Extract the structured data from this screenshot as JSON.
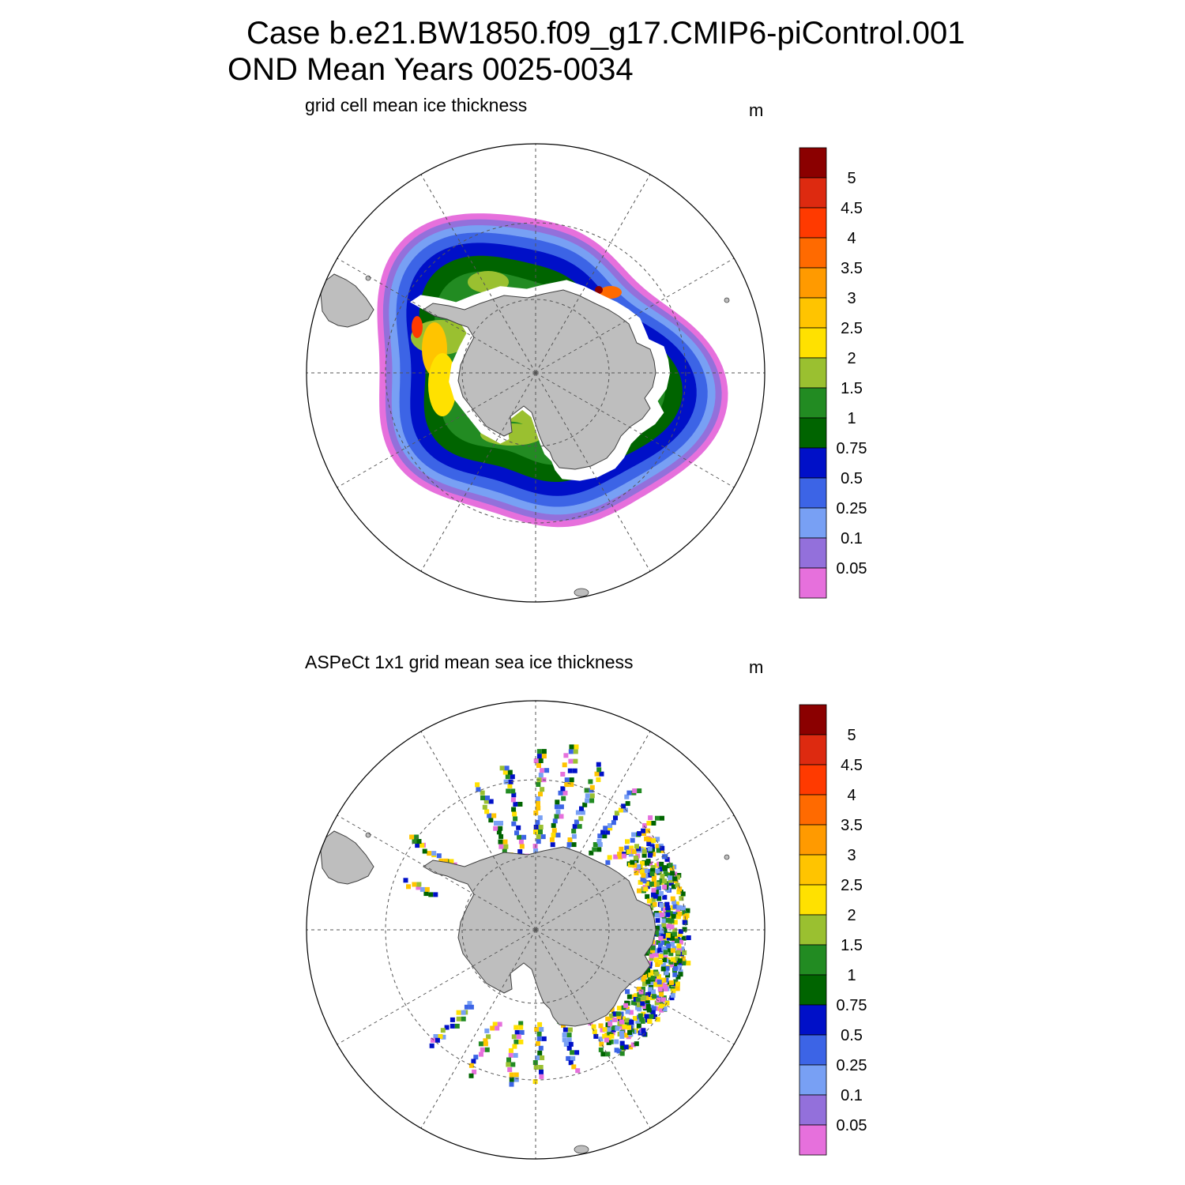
{
  "figure": {
    "title_line1": "Case b.e21.BW1850.f09_g17.CMIP6-piControl.001",
    "title_line2": "OND Mean   Years 0025-0034"
  },
  "panels": [
    {
      "id": "model",
      "title": "grid cell mean ice thickness",
      "units": "m",
      "field": "continuous-pack"
    },
    {
      "id": "obs",
      "title": "ASPeCt 1x1 grid mean sea ice thickness",
      "units": "m",
      "field": "ship-tracks"
    }
  ],
  "colorbar": {
    "labels": [
      "5",
      "4.5",
      "4",
      "3.5",
      "3",
      "2.5",
      "2",
      "1.5",
      "1",
      "0.75",
      "0.5",
      "0.25",
      "0.1",
      "0.05"
    ],
    "colors": [
      "#8b0000",
      "#dd2a10",
      "#ff3a00",
      "#ff6a00",
      "#ff9a00",
      "#ffc400",
      "#ffe100",
      "#9ac030",
      "#228b22",
      "#006400",
      "#0010c8",
      "#3c64e6",
      "#78a0f4",
      "#9370db",
      "#e670dc"
    ]
  },
  "map_style": {
    "land_color": "#bebebe",
    "coast_color": "#404040",
    "grid_color": "#555555"
  }
}
